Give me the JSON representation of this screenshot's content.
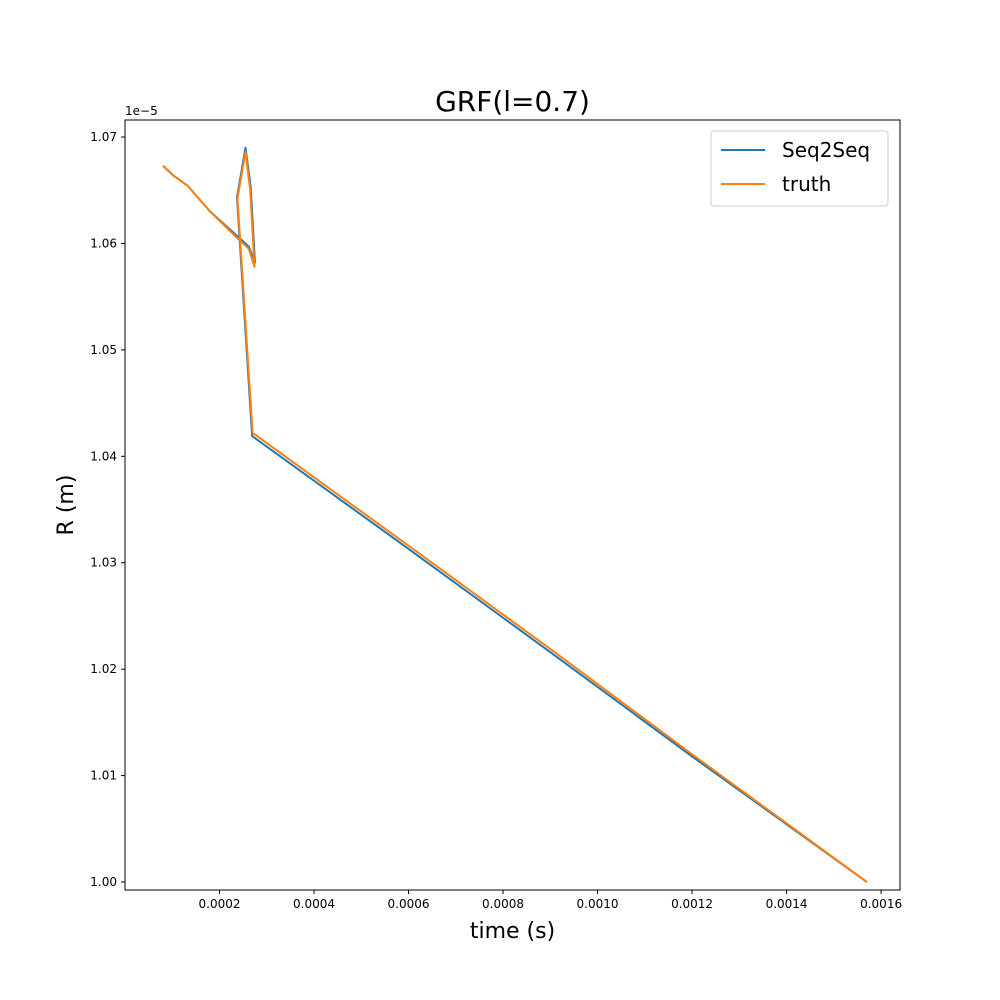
{
  "chart_data": {
    "type": "line",
    "title": "GRF(l=0.7)",
    "xlabel": "time (s)",
    "ylabel": "R (m)",
    "y_offset_label": "1e−5",
    "xlim": [
      0.0,
      0.00164
    ],
    "ylim": [
      0.99925,
      1.0716
    ],
    "x_ticks": [
      0.0002,
      0.0004,
      0.0006,
      0.0008,
      0.001,
      0.0012,
      0.0014,
      0.0016
    ],
    "x_tick_labels": [
      "0.0002",
      "0.0004",
      "0.0006",
      "0.0008",
      "0.0010",
      "0.0012",
      "0.0014",
      "0.0016"
    ],
    "y_ticks": [
      1.0,
      1.01,
      1.02,
      1.03,
      1.04,
      1.05,
      1.06,
      1.07
    ],
    "y_tick_labels": [
      "1.00",
      "1.01",
      "1.02",
      "1.03",
      "1.04",
      "1.05",
      "1.06",
      "1.07"
    ],
    "grid": false,
    "legend_position": "top-right",
    "series": [
      {
        "name": "Seq2Seq",
        "color": "#1f77b4",
        "points": [
          [
            8.05e-05,
            1.0673
          ],
          [
            0.000102,
            1.0664
          ],
          [
            0.000133,
            1.0654
          ],
          [
            0.00018,
            1.063
          ],
          [
            0.00024,
            1.0606
          ],
          [
            0.000262,
            1.0597
          ],
          [
            0.000275,
            1.0582
          ],
          [
            0.000266,
            1.0653
          ],
          [
            0.000255,
            1.069
          ],
          [
            0.000237,
            1.0643
          ],
          [
            0.000269,
            1.0419
          ],
          [
            0.0006,
            1.0313
          ],
          [
            0.0009,
            1.0216
          ],
          [
            0.0012,
            1.0118
          ],
          [
            0.00157,
            1.0
          ]
        ]
      },
      {
        "name": "truth",
        "color": "#ff7f0e",
        "points": [
          [
            8.05e-05,
            1.0673
          ],
          [
            0.000102,
            1.0664
          ],
          [
            0.000133,
            1.0654
          ],
          [
            0.00018,
            1.063
          ],
          [
            0.00024,
            1.0604
          ],
          [
            0.000262,
            1.0595
          ],
          [
            0.000274,
            1.0578
          ],
          [
            0.000265,
            1.065
          ],
          [
            0.000255,
            1.0686
          ],
          [
            0.000238,
            1.0642
          ],
          [
            0.00027,
            1.0422
          ],
          [
            0.0006,
            1.0316
          ],
          [
            0.0009,
            1.0219
          ],
          [
            0.0012,
            1.012
          ],
          [
            0.00157,
            1.0
          ]
        ]
      }
    ]
  }
}
